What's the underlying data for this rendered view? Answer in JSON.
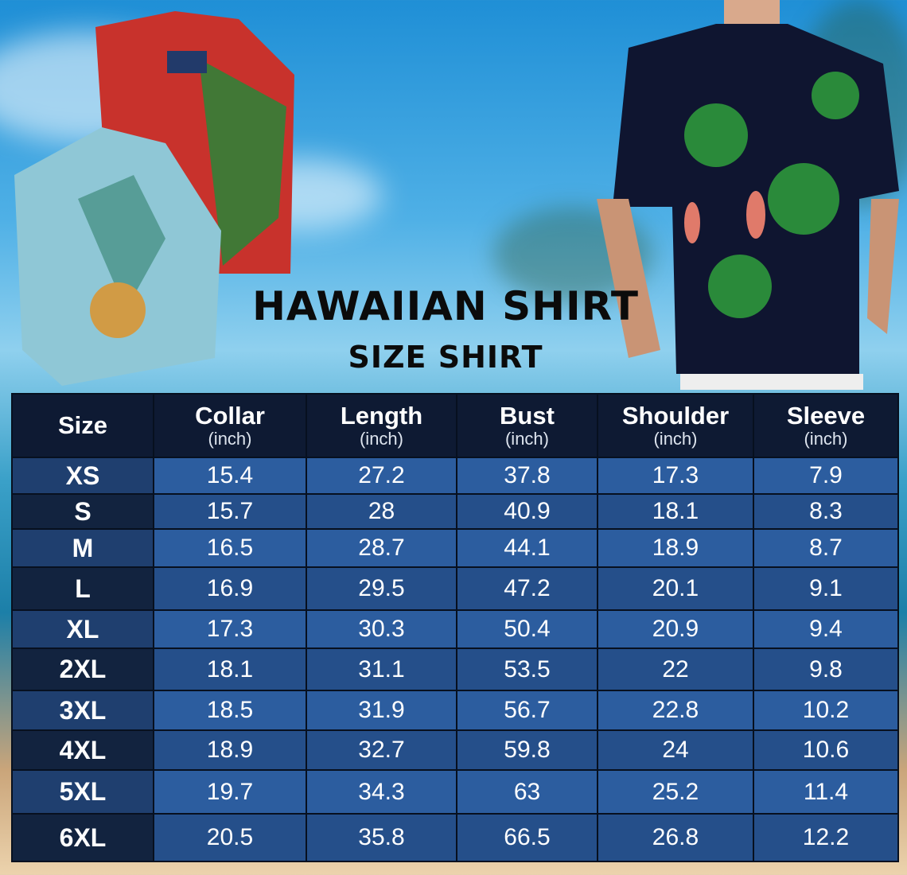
{
  "title": "HAWAIIAN SHIRT",
  "subtitle": "SIZE SHIRT",
  "colors": {
    "header_bg": "#0e1a33",
    "row_light": "#2c5d9f",
    "row_dark": "#254f8a",
    "size_col_light": "#1f3f6f",
    "size_col_dark": "#12233f"
  },
  "table": {
    "headers": [
      {
        "label": "Size",
        "unit": ""
      },
      {
        "label": "Collar",
        "unit": "(inch)"
      },
      {
        "label": "Length",
        "unit": "(inch)"
      },
      {
        "label": "Bust",
        "unit": "(inch)"
      },
      {
        "label": "Shoulder",
        "unit": "(inch)"
      },
      {
        "label": "Sleeve",
        "unit": "(inch)"
      }
    ],
    "rows": [
      [
        "XS",
        "15.4",
        "27.2",
        "37.8",
        "17.3",
        "7.9"
      ],
      [
        "S",
        "15.7",
        "28",
        "40.9",
        "18.1",
        "8.3"
      ],
      [
        "M",
        "16.5",
        "28.7",
        "44.1",
        "18.9",
        "8.7"
      ],
      [
        "L",
        "16.9",
        "29.5",
        "47.2",
        "20.1",
        "9.1"
      ],
      [
        "XL",
        "17.3",
        "30.3",
        "50.4",
        "20.9",
        "9.4"
      ],
      [
        "2XL",
        "18.1",
        "31.1",
        "53.5",
        "22",
        "9.8"
      ],
      [
        "3XL",
        "18.5",
        "31.9",
        "56.7",
        "22.8",
        "10.2"
      ],
      [
        "4XL",
        "18.9",
        "32.7",
        "59.8",
        "24",
        "10.6"
      ],
      [
        "5XL",
        "19.7",
        "34.3",
        "63",
        "25.2",
        "11.4"
      ],
      [
        "6XL",
        "20.5",
        "35.8",
        "66.5",
        "26.8",
        "12.2"
      ]
    ]
  }
}
